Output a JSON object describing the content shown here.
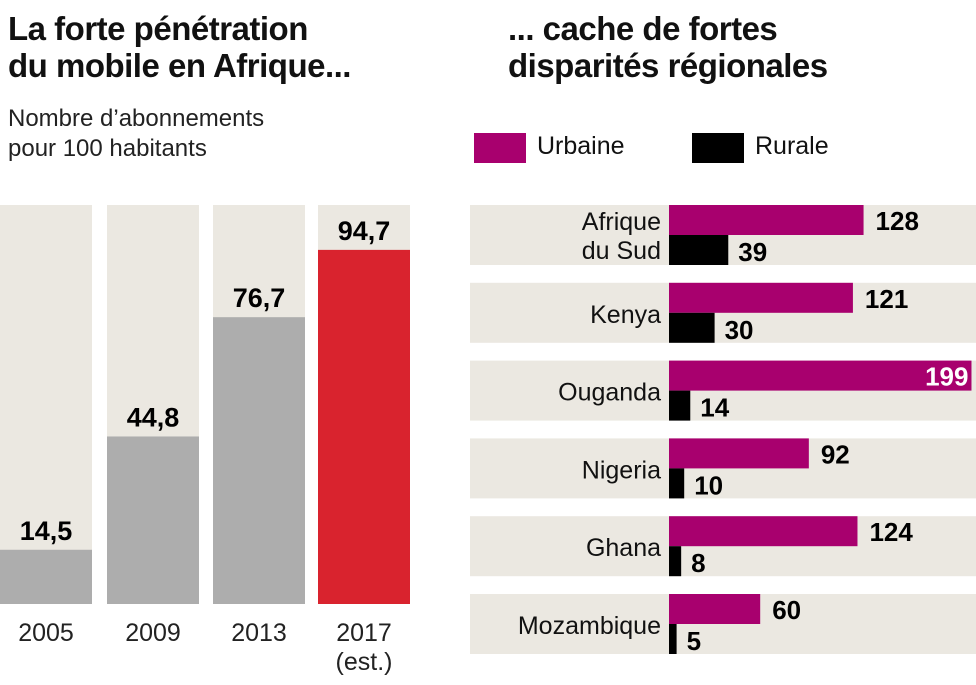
{
  "chart_data": [
    {
      "type": "bar",
      "title": "La forte pénétration du mobile en Afrique...",
      "title_lines": [
        "La forte pénétration",
        "du mobile en Afrique..."
      ],
      "subtitle_lines": [
        "Nombre d’abonnements",
        "pour 100 habitants"
      ],
      "categories": [
        "2005",
        "2009",
        "2013",
        "2017"
      ],
      "category_notes": [
        "",
        "",
        "",
        "(est.)"
      ],
      "values": [
        14.5,
        44.8,
        76.7,
        94.7
      ],
      "labels": [
        "14,5",
        "44,8",
        "76,7",
        "94,7"
      ],
      "ylim": [
        0,
        106.7
      ],
      "colors": [
        "#adadad",
        "#adadad",
        "#adadad",
        "#d9232e"
      ],
      "background": "#ebe8e1"
    },
    {
      "type": "bar",
      "orientation": "horizontal",
      "title": "... cache de fortes disparités régionales",
      "title_lines": [
        "... cache de fortes",
        "disparités régionales"
      ],
      "categories": [
        "Afrique du Sud",
        "Kenya",
        "Ouganda",
        "Nigeria",
        "Ghana",
        "Mozambique"
      ],
      "category_lines": [
        [
          "Afrique",
          "du Sud"
        ],
        [
          "Kenya"
        ],
        [
          "Ouganda"
        ],
        [
          "Nigeria"
        ],
        [
          "Ghana"
        ],
        [
          "Mozambique"
        ]
      ],
      "series": [
        {
          "name": "Urbaine",
          "color": "#a8006e",
          "values": [
            128,
            121,
            199,
            92,
            124,
            60
          ]
        },
        {
          "name": "Rurale",
          "color": "#000000",
          "values": [
            39,
            30,
            14,
            10,
            8,
            5
          ]
        }
      ],
      "legend": "top",
      "xlim": [
        0,
        200
      ]
    }
  ]
}
